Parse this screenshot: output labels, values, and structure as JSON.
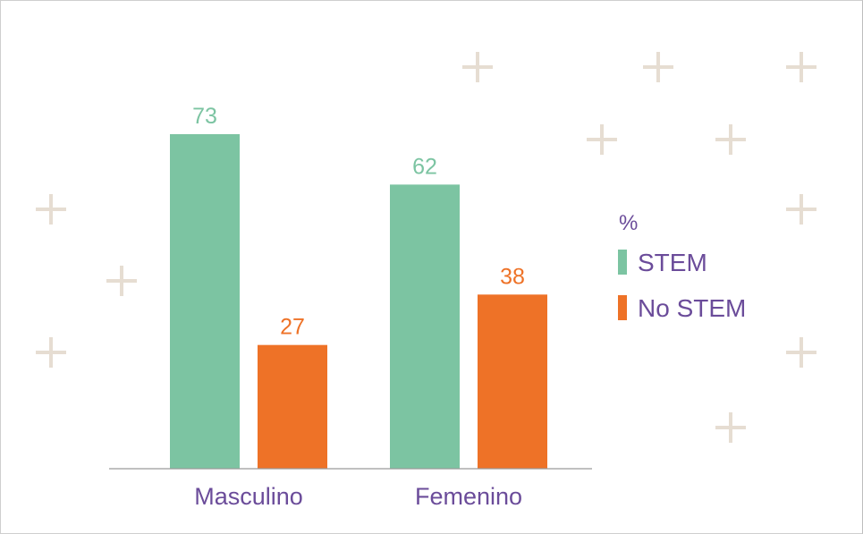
{
  "colors": {
    "stem": "#7cc4a2",
    "no_stem": "#ee7227",
    "text": "#6b4c9a",
    "axis": "#9a9a9a",
    "decoration": "#e6ddd2"
  },
  "legend": {
    "title": "%",
    "items": [
      "STEM",
      "No STEM"
    ]
  },
  "chart_data": {
    "type": "bar",
    "categories": [
      "Masculino",
      "Femenino"
    ],
    "series": [
      {
        "name": "STEM",
        "values": [
          73,
          62
        ]
      },
      {
        "name": "No STEM",
        "values": [
          27,
          38
        ]
      }
    ],
    "ylim": [
      0,
      73
    ],
    "grid": false,
    "legend_position": "right",
    "unit": "%",
    "decoration_icon": "plus-icon"
  }
}
